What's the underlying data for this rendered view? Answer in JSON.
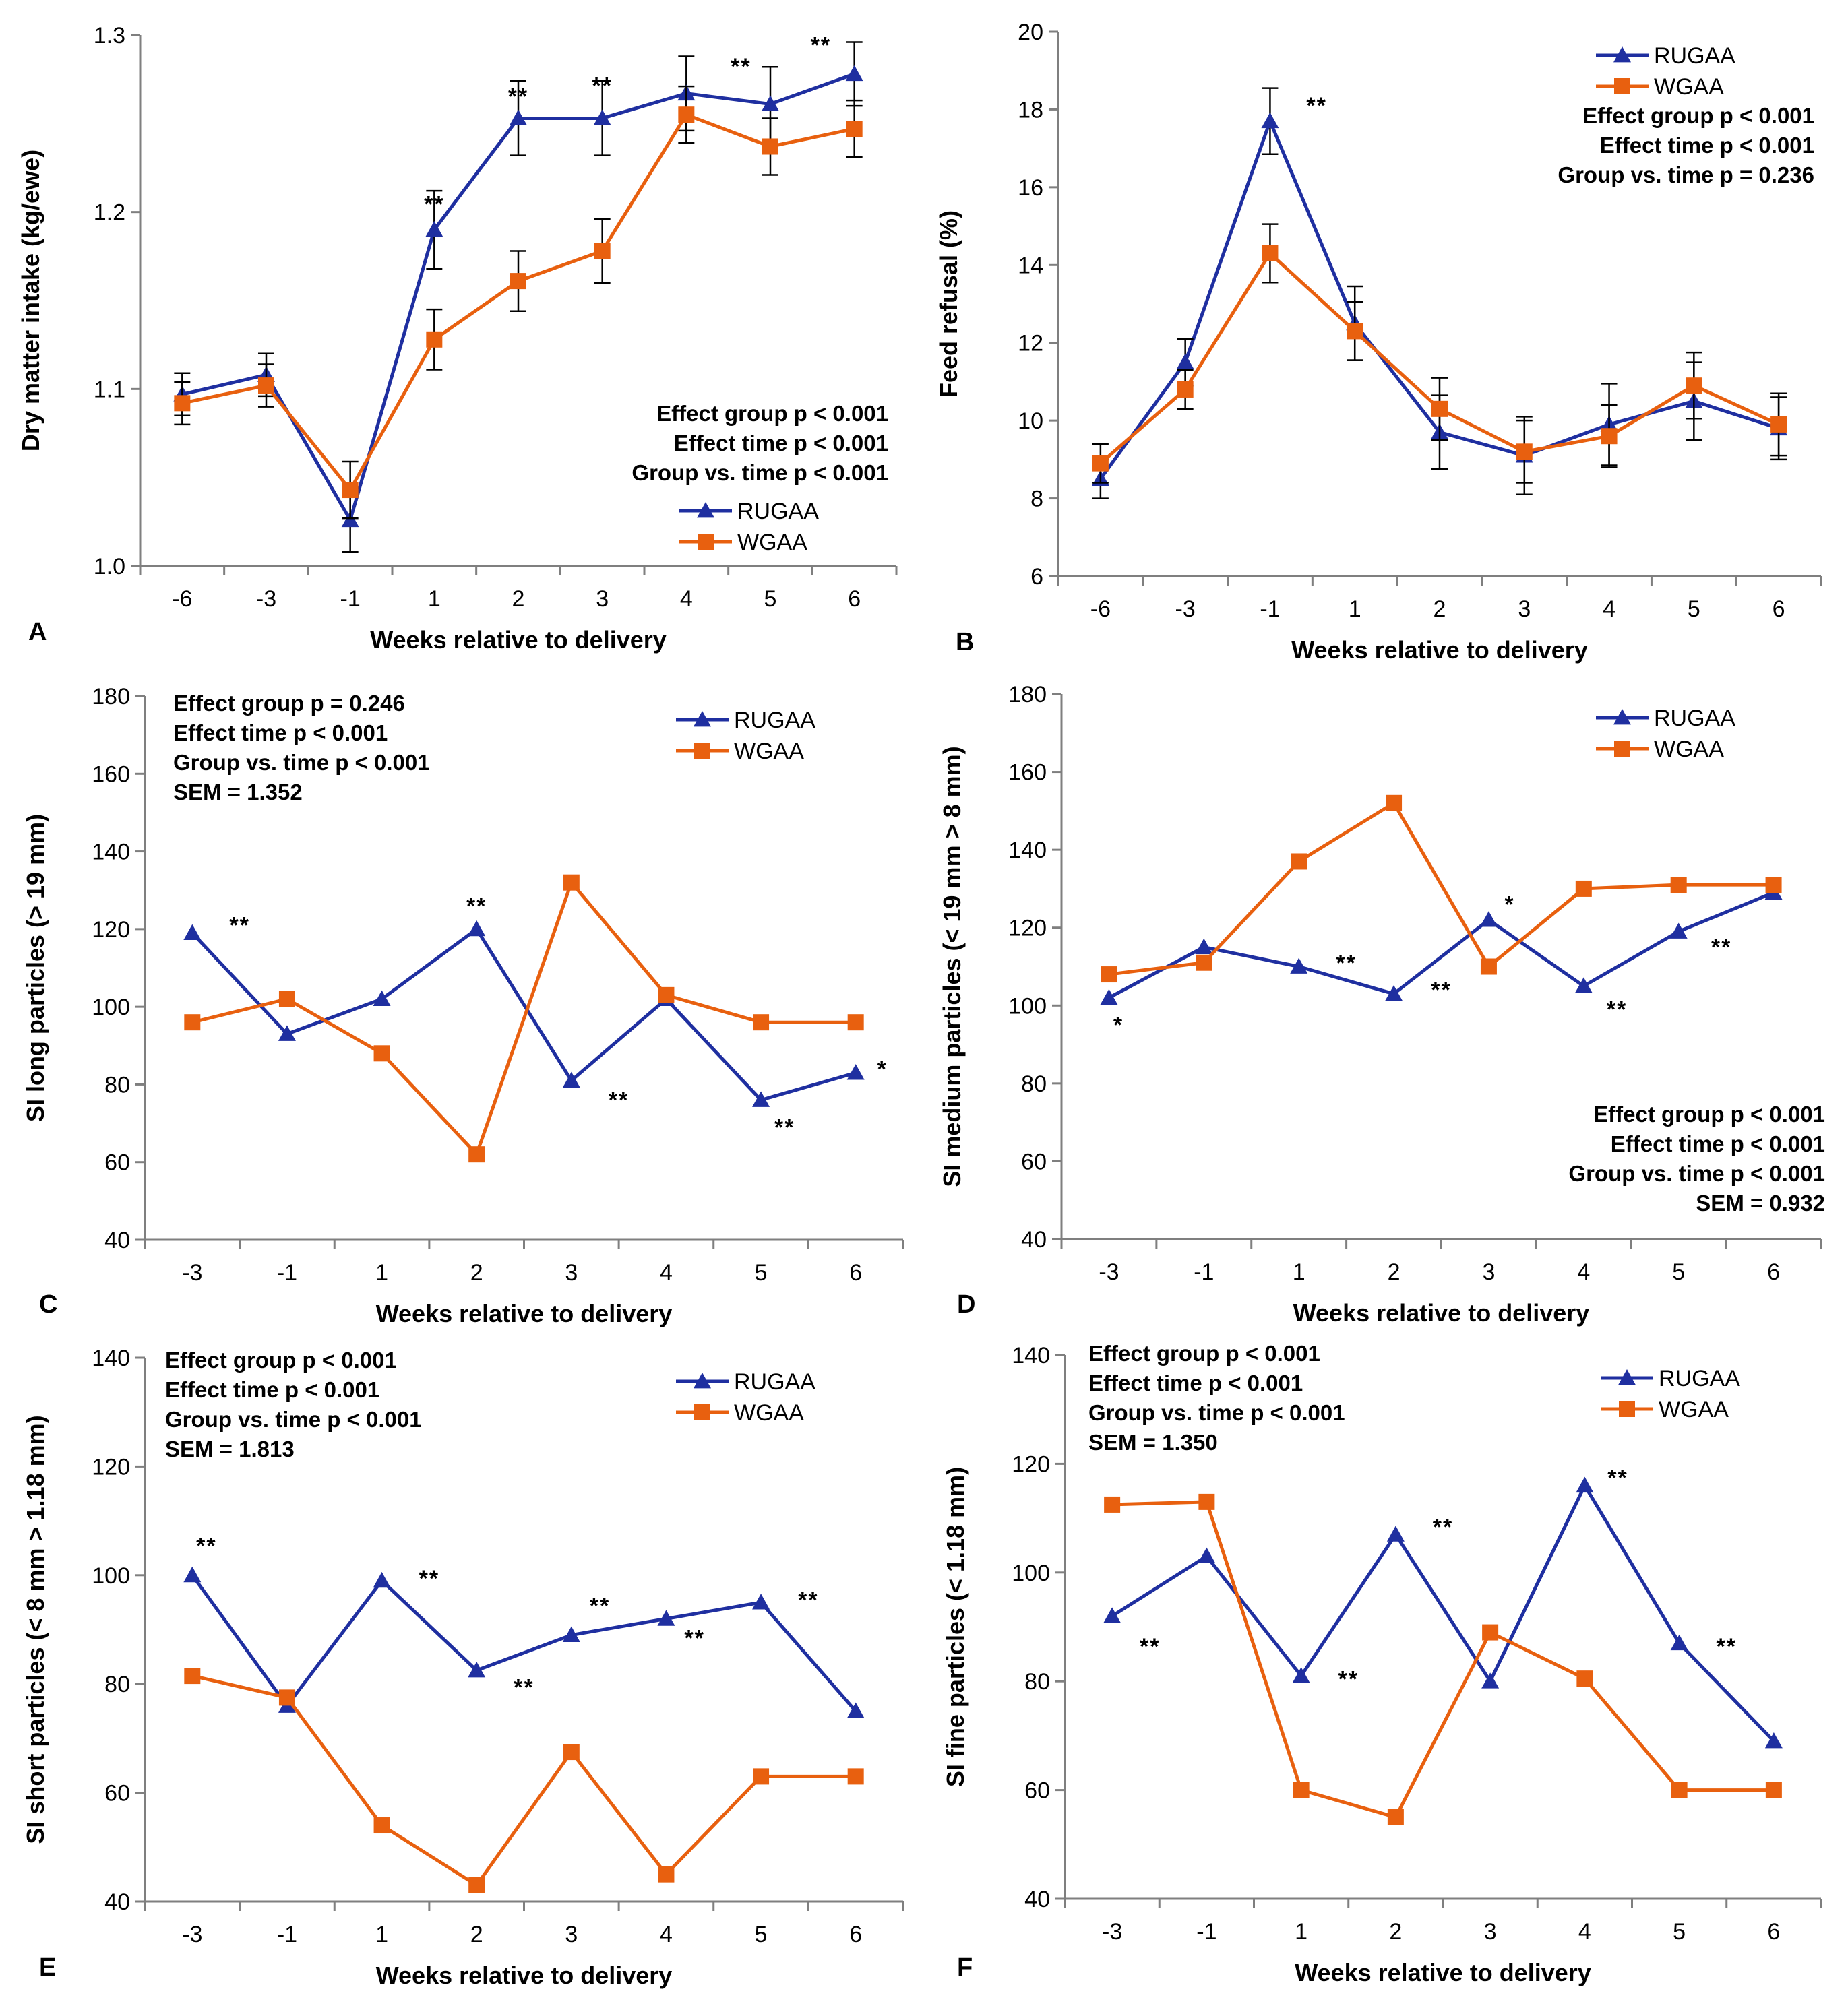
{
  "figure": {
    "colors": {
      "RUGAA": "#1f2fa0",
      "WGAA": "#e8600f",
      "axis": "#7f7f7f",
      "error": "#000000"
    }
  },
  "chart_data": [
    {
      "panel": "A",
      "type": "line",
      "xlabel": "Weeks relative to delivery",
      "ylabel": "Dry matter intake (kg/ewe)",
      "categories": [
        "-6",
        "-3",
        "-1",
        "1",
        "2",
        "3",
        "4",
        "5",
        "6"
      ],
      "ylim": [
        1.0,
        1.3
      ],
      "yticks": [
        "1.0",
        "1.1",
        "1.2",
        "1.3"
      ],
      "series": [
        {
          "name": "RUGAA",
          "marker": "triangle",
          "values": [
            1.097,
            1.108,
            1.026,
            1.19,
            1.253,
            1.253,
            1.267,
            1.261,
            1.278
          ],
          "errors": [
            0.012,
            0.012,
            0.018,
            0.022,
            0.021,
            0.021,
            0.021,
            0.021,
            0.018
          ]
        },
        {
          "name": "WGAA",
          "marker": "square",
          "values": [
            1.092,
            1.102,
            1.043,
            1.128,
            1.161,
            1.178,
            1.255,
            1.237,
            1.247
          ],
          "errors": [
            0.012,
            0.012,
            0.016,
            0.017,
            0.017,
            0.018,
            0.016,
            0.016,
            0.016
          ]
        }
      ],
      "significance": [
        {
          "label": "**",
          "index": 3,
          "value": 1.2
        },
        {
          "label": "**",
          "index": 4,
          "value": 1.261
        },
        {
          "label": "**",
          "index": 5,
          "value": 1.267
        },
        {
          "label": "**",
          "index": 6.65,
          "value": 1.278
        },
        {
          "label": "**",
          "index": 7.6,
          "value": 1.29
        }
      ],
      "stats": [
        "Effect group p < 0.001",
        "Effect time p < 0.001",
        "Group vs. time p < 0.001"
      ],
      "legend": "bottom-right"
    },
    {
      "panel": "B",
      "type": "line",
      "xlabel": "Weeks relative to delivery",
      "ylabel": "Feed refusal (%)",
      "categories": [
        "-6",
        "-3",
        "-1",
        "1",
        "2",
        "3",
        "4",
        "5",
        "6"
      ],
      "ylim": [
        6,
        20
      ],
      "yticks": [
        "6",
        "8",
        "10",
        "12",
        "14",
        "16",
        "18",
        "20"
      ],
      "series": [
        {
          "name": "RUGAA",
          "marker": "triangle",
          "values": [
            8.5,
            11.5,
            17.7,
            12.5,
            9.7,
            9.1,
            9.9,
            10.5,
            9.8
          ],
          "errors": [
            0.5,
            0.6,
            0.85,
            0.95,
            0.95,
            1.0,
            1.05,
            1.0,
            0.8
          ]
        },
        {
          "name": "WGAA",
          "marker": "square",
          "values": [
            8.9,
            10.8,
            14.3,
            12.3,
            10.3,
            9.2,
            9.6,
            10.9,
            9.9
          ],
          "errors": [
            0.5,
            0.5,
            0.75,
            0.75,
            0.8,
            0.8,
            0.8,
            0.85,
            0.8
          ]
        }
      ],
      "significance": [
        {
          "label": "**",
          "index": 2.55,
          "value": 17.9
        }
      ],
      "stats": [
        "Effect group p < 0.001",
        "Effect time p < 0.001",
        "Group vs. time p = 0.236"
      ],
      "legend": "top-right"
    },
    {
      "panel": "C",
      "type": "line",
      "xlabel": "Weeks relative to delivery",
      "ylabel": "SI long particles (> 19 mm)",
      "categories": [
        "-3",
        "-1",
        "1",
        "2",
        "3",
        "4",
        "5",
        "6"
      ],
      "ylim": [
        40,
        180
      ],
      "yticks": [
        "40",
        "60",
        "80",
        "100",
        "120",
        "140",
        "160",
        "180"
      ],
      "series": [
        {
          "name": "RUGAA",
          "marker": "triangle",
          "values": [
            119,
            93,
            102,
            120,
            81,
            102,
            76,
            83
          ]
        },
        {
          "name": "WGAA",
          "marker": "square",
          "values": [
            96,
            102,
            88,
            62,
            132,
            103,
            96,
            96
          ]
        }
      ],
      "significance": [
        {
          "label": "**",
          "index": 0.5,
          "value": 119
        },
        {
          "label": "**",
          "index": 3.0,
          "value": 124
        },
        {
          "label": "**",
          "index": 4.5,
          "value": 74
        },
        {
          "label": "**",
          "index": 6.25,
          "value": 67
        },
        {
          "label": "*",
          "index": 7.28,
          "value": 82
        }
      ],
      "stats": [
        "Effect group p = 0.246",
        "Effect time p < 0.001",
        "Group vs. time p < 0.001",
        "SEM = 1.352"
      ],
      "legend": "top-right"
    },
    {
      "panel": "D",
      "type": "line",
      "xlabel": "Weeks relative to delivery",
      "ylabel": "SI medium particles (< 19 mm > 8 mm)",
      "categories": [
        "-3",
        "-1",
        "1",
        "2",
        "3",
        "4",
        "5",
        "6"
      ],
      "ylim": [
        40,
        180
      ],
      "yticks": [
        "40",
        "60",
        "80",
        "100",
        "120",
        "140",
        "160",
        "180"
      ],
      "series": [
        {
          "name": "RUGAA",
          "marker": "triangle",
          "values": [
            102,
            115,
            110,
            103,
            122,
            105,
            119,
            129
          ]
        },
        {
          "name": "WGAA",
          "marker": "square",
          "values": [
            108,
            111,
            137,
            152,
            110,
            130,
            131,
            131
          ]
        }
      ],
      "significance": [
        {
          "label": "*",
          "index": 0.1,
          "value": 93
        },
        {
          "label": "**",
          "index": 2.5,
          "value": 109
        },
        {
          "label": "**",
          "index": 3.5,
          "value": 102
        },
        {
          "label": "*",
          "index": 4.22,
          "value": 124
        },
        {
          "label": "**",
          "index": 5.35,
          "value": 97
        },
        {
          "label": "**",
          "index": 6.45,
          "value": 113
        }
      ],
      "stats": [
        "Effect group p < 0.001",
        "Effect time p < 0.001",
        "Group vs. time p < 0.001",
        "SEM = 0.932"
      ],
      "legend": "top-right"
    },
    {
      "panel": "E",
      "type": "line",
      "xlabel": "Weeks relative to delivery",
      "ylabel": "SI short particles (< 8 mm > 1.18 mm)",
      "categories": [
        "-3",
        "-1",
        "1",
        "2",
        "3",
        "4",
        "5",
        "6"
      ],
      "ylim": [
        40,
        140
      ],
      "yticks": [
        "40",
        "60",
        "80",
        "100",
        "120",
        "140"
      ],
      "series": [
        {
          "name": "RUGAA",
          "marker": "triangle",
          "values": [
            100,
            76,
            99,
            82.5,
            89,
            92,
            95,
            75
          ]
        },
        {
          "name": "WGAA",
          "marker": "square",
          "values": [
            81.5,
            77.5,
            54,
            43,
            67.5,
            45,
            63,
            63
          ]
        }
      ],
      "significance": [
        {
          "label": "**",
          "index": 0.15,
          "value": 104
        },
        {
          "label": "**",
          "index": 2.5,
          "value": 98
        },
        {
          "label": "**",
          "index": 3.5,
          "value": 78
        },
        {
          "label": "**",
          "index": 4.3,
          "value": 93
        },
        {
          "label": "**",
          "index": 5.3,
          "value": 87
        },
        {
          "label": "**",
          "index": 6.5,
          "value": 94
        }
      ],
      "stats": [
        "Effect group p < 0.001",
        "Effect time p < 0.001",
        "Group vs. time p < 0.001",
        "SEM = 1.813"
      ],
      "legend": "top-right"
    },
    {
      "panel": "F",
      "type": "line",
      "xlabel": "Weeks relative to delivery",
      "ylabel": "SI fine particles (< 1.18 mm)",
      "categories": [
        "-3",
        "-1",
        "1",
        "2",
        "3",
        "4",
        "5",
        "6"
      ],
      "ylim": [
        40,
        140
      ],
      "yticks": [
        "40",
        "60",
        "80",
        "100",
        "120",
        "140"
      ],
      "series": [
        {
          "name": "RUGAA",
          "marker": "triangle",
          "values": [
            92,
            103,
            81,
            107,
            80,
            116,
            87,
            69
          ]
        },
        {
          "name": "WGAA",
          "marker": "square",
          "values": [
            112.5,
            113,
            60,
            55,
            89,
            80.5,
            60,
            60
          ]
        }
      ],
      "significance": [
        {
          "label": "**",
          "index": 0.4,
          "value": 85
        },
        {
          "label": "**",
          "index": 2.5,
          "value": 79
        },
        {
          "label": "**",
          "index": 3.5,
          "value": 107
        },
        {
          "label": "**",
          "index": 5.35,
          "value": 116
        },
        {
          "label": "**",
          "index": 6.5,
          "value": 85
        }
      ],
      "stats": [
        "Effect group p < 0.001",
        "Effect time p < 0.001",
        "Group vs. time p < 0.001",
        "SEM = 1.350"
      ],
      "legend": "top-right"
    }
  ]
}
